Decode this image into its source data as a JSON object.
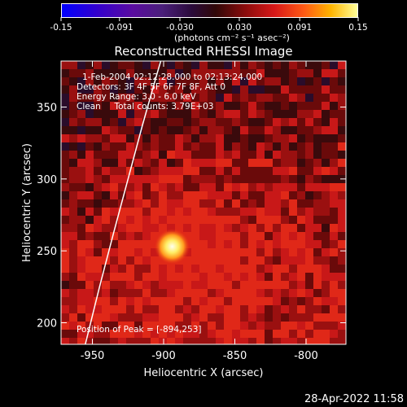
{
  "colorbar": {
    "tick_labels": [
      "-0.15",
      "-0.091",
      "-0.030",
      "0.030",
      "0.091",
      "0.15"
    ],
    "units_label": "(photons cm⁻² s⁻¹ asec⁻²)"
  },
  "chart_data": {
    "type": "heatmap",
    "title": "Reconstructed RHESSI Image",
    "xlabel": "Heliocentric X (arcsec)",
    "ylabel": "Heliocentric Y (arcsec)",
    "xlim": [
      -972,
      -772
    ],
    "ylim": [
      185,
      382
    ],
    "x_ticks": [
      -950,
      -900,
      -850,
      -800
    ],
    "y_ticks": [
      200,
      250,
      300,
      350
    ],
    "color_range": [
      -0.15,
      0.15
    ],
    "peak": {
      "x": -894,
      "y": 253
    },
    "limb_curve": [
      [
        -955,
        185
      ],
      [
        -945,
        225
      ],
      [
        -935,
        263
      ],
      [
        -925,
        300
      ],
      [
        -915,
        337
      ],
      [
        -905,
        372
      ],
      [
        -902,
        382
      ]
    ],
    "annotations": [
      "1-Feb-2004 02:12:28.000 to 02:13:24.000",
      "Detectors: 3F 4F 5F 6F 7F 8F, Att 0",
      "Energy Range: 3.0 - 6.0 keV",
      "Clean     Total counts: 3.79E+03",
      "Position of Peak = [-894,253]"
    ]
  },
  "footer": {
    "date": "28-Apr-2022 11:58"
  }
}
